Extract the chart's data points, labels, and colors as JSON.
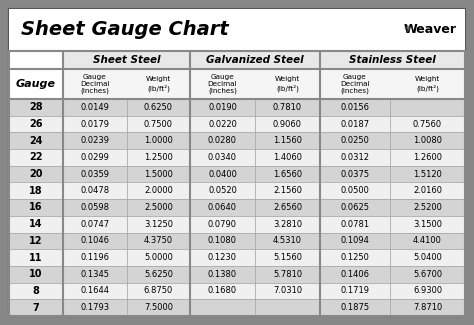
{
  "title": "Sheet Gauge Chart",
  "bg_outer": "#878787",
  "bg_white": "#ffffff",
  "bg_title": "#ffffff",
  "col_header_bg": "#ffffff",
  "row_dark": "#d4d4d4",
  "row_light": "#f0f0f0",
  "border_color": "#555555",
  "grid_color": "#888888",
  "gauges": [
    28,
    26,
    24,
    22,
    20,
    18,
    16,
    14,
    12,
    11,
    10,
    8,
    7
  ],
  "sheet_steel_dec": [
    "0.0149",
    "0.0179",
    "0.0239",
    "0.0299",
    "0.0359",
    "0.0478",
    "0.0598",
    "0.0747",
    "0.1046",
    "0.1196",
    "0.1345",
    "0.1644",
    "0.1793"
  ],
  "sheet_steel_wt": [
    "0.6250",
    "0.7500",
    "1.0000",
    "1.2500",
    "1.5000",
    "2.0000",
    "2.5000",
    "3.1250",
    "4.3750",
    "5.0000",
    "5.6250",
    "6.8750",
    "7.5000"
  ],
  "galv_dec": [
    "0.0190",
    "0.0220",
    "0.0280",
    "0.0340",
    "0.0400",
    "0.0520",
    "0.0640",
    "0.0790",
    "0.1080",
    "0.1230",
    "0.1380",
    "0.1680",
    ""
  ],
  "galv_wt": [
    "0.7810",
    "0.9060",
    "1.1560",
    "1.4060",
    "1.6560",
    "2.1560",
    "2.6560",
    "3.2810",
    "4.5310",
    "5.1560",
    "5.7810",
    "7.0310",
    ""
  ],
  "stain_dec": [
    "0.0156",
    "0.0187",
    "0.0250",
    "0.0312",
    "0.0375",
    "0.0500",
    "0.0625",
    "0.0781",
    "0.1094",
    "0.1250",
    "0.1406",
    "0.1719",
    "0.1875"
  ],
  "stain_wt": [
    "",
    "0.7560",
    "1.0080",
    "1.2600",
    "1.5120",
    "2.0160",
    "2.5200",
    "3.1500",
    "4.4100",
    "5.0400",
    "5.6700",
    "6.9300",
    "7.8710"
  ],
  "figw": 4.74,
  "figh": 3.25,
  "dpi": 100
}
